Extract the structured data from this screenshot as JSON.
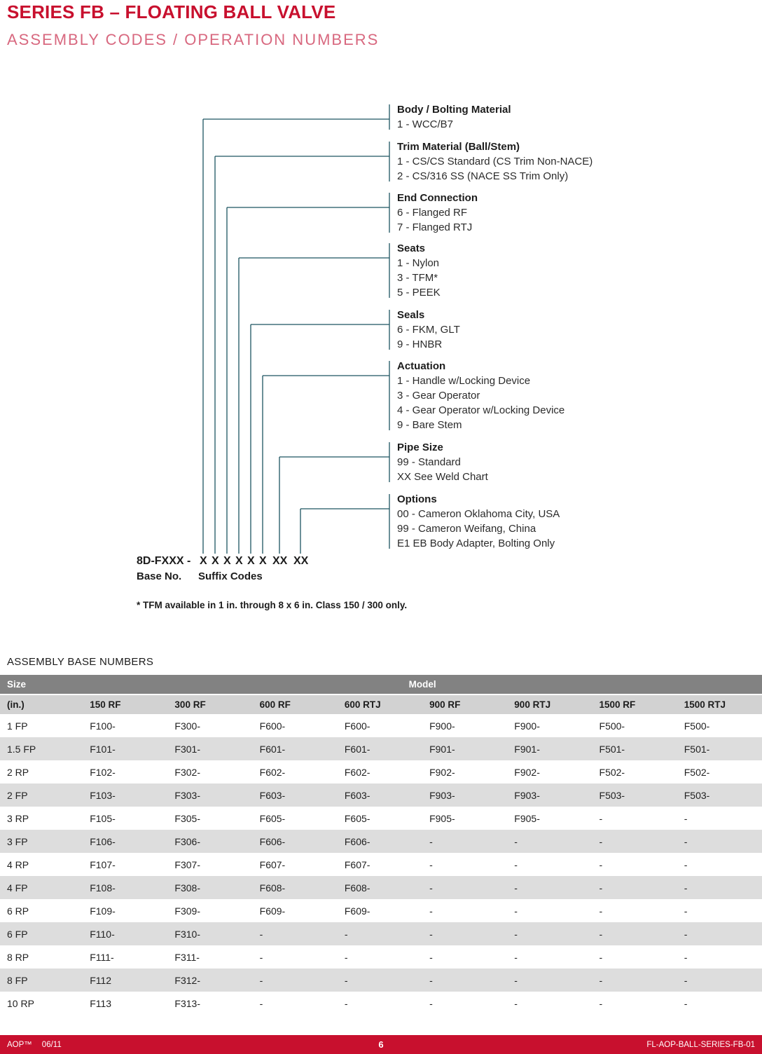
{
  "page": {
    "title": "SERIES FB – FLOATING BALL VALVE",
    "subtitle": "ASSEMBLY CODES / OPERATION NUMBERS"
  },
  "diagram": {
    "groups": [
      {
        "heading": "Body / Bolting Material",
        "items": [
          "1 - WCC/B7"
        ]
      },
      {
        "heading": "Trim Material (Ball/Stem)",
        "items": [
          "1 - CS/CS Standard (CS Trim Non-NACE)",
          "2 - CS/316 SS (NACE SS Trim Only)"
        ]
      },
      {
        "heading": "End Connection",
        "items": [
          "6 - Flanged RF",
          "7 - Flanged RTJ"
        ]
      },
      {
        "heading": "Seats",
        "items": [
          "1 - Nylon",
          "3 - TFM*",
          "5 - PEEK"
        ]
      },
      {
        "heading": "Seals",
        "items": [
          "6 - FKM, GLT",
          "9 - HNBR"
        ]
      },
      {
        "heading": "Actuation",
        "items": [
          "1 - Handle w/Locking Device",
          "3 - Gear Operator",
          "4 - Gear Operator w/Locking Device",
          "9 - Bare Stem"
        ]
      },
      {
        "heading": "Pipe Size",
        "items": [
          "99 - Standard",
          "XX See Weld Chart"
        ]
      },
      {
        "heading": "Options",
        "items": [
          "00 - Cameron Oklahoma City, USA",
          "99 - Cameron Weifang, China",
          "E1 EB Body Adapter, Bolting Only"
        ]
      }
    ],
    "code": {
      "prefix": "8D-FXXX -",
      "suffix_parts": [
        "X",
        "X",
        "X",
        "X",
        "X",
        "X",
        "XX",
        "XX"
      ],
      "caption_base": "Base No.",
      "caption_suffix": "Suffix Codes"
    },
    "footnote": "* TFM available in 1 in. through 8 x 6 in. Class 150 / 300 only."
  },
  "table": {
    "title": "ASSEMBLY BASE NUMBERS",
    "header_group_left": "Size",
    "header_group_right": "Model",
    "columns": [
      "(in.)",
      "150 RF",
      "300 RF",
      "600 RF",
      "600 RTJ",
      "900 RF",
      "900 RTJ",
      "1500 RF",
      "1500 RTJ"
    ],
    "rows": [
      [
        "1 FP",
        "F100-",
        "F300-",
        "F600-",
        "F600-",
        "F900-",
        "F900-",
        "F500-",
        "F500-"
      ],
      [
        "1.5 FP",
        "F101-",
        "F301-",
        "F601-",
        "F601-",
        "F901-",
        "F901-",
        "F501-",
        "F501-"
      ],
      [
        "2 RP",
        "F102-",
        "F302-",
        "F602-",
        "F602-",
        "F902-",
        "F902-",
        "F502-",
        "F502-"
      ],
      [
        "2 FP",
        "F103-",
        "F303-",
        "F603-",
        "F603-",
        "F903-",
        "F903-",
        "F503-",
        "F503-"
      ],
      [
        "3 RP",
        "F105-",
        "F305-",
        "F605-",
        "F605-",
        "F905-",
        "F905-",
        "-",
        "-"
      ],
      [
        "3 FP",
        "F106-",
        "F306-",
        "F606-",
        "F606-",
        "-",
        "-",
        "-",
        "-"
      ],
      [
        "4 RP",
        "F107-",
        "F307-",
        "F607-",
        "F607-",
        "-",
        "-",
        "-",
        "-"
      ],
      [
        "4 FP",
        "F108-",
        "F308-",
        "F608-",
        "F608-",
        "-",
        "-",
        "-",
        "-"
      ],
      [
        "6 RP",
        "F109-",
        "F309-",
        "F609-",
        "F609-",
        "-",
        "-",
        "-",
        "-"
      ],
      [
        "6 FP",
        "F110-",
        "F310-",
        "-",
        "-",
        "-",
        "-",
        "-",
        "-"
      ],
      [
        "8 RP",
        "F111-",
        "F311-",
        "-",
        "-",
        "-",
        "-",
        "-",
        "-"
      ],
      [
        "8 FP",
        "F112",
        "F312-",
        "-",
        "-",
        "-",
        "-",
        "-",
        "-"
      ],
      [
        "10 RP",
        "F113",
        "F313-",
        "-",
        "-",
        "-",
        "-",
        "-",
        "-"
      ]
    ]
  },
  "footer": {
    "brand": "AOP™",
    "date": "06/11",
    "page_number": "6",
    "doc_code": "FL-AOP-BALL-SERIES-FB-01"
  },
  "colors": {
    "title_red": "#C8102E",
    "subtitle_pink": "#D8687F",
    "connector_teal": "#1C5560",
    "header_dark": "#828282",
    "header_light": "#D2D2D2",
    "row_stripe": "#DDDDDD",
    "footer_red": "#C8102E"
  }
}
